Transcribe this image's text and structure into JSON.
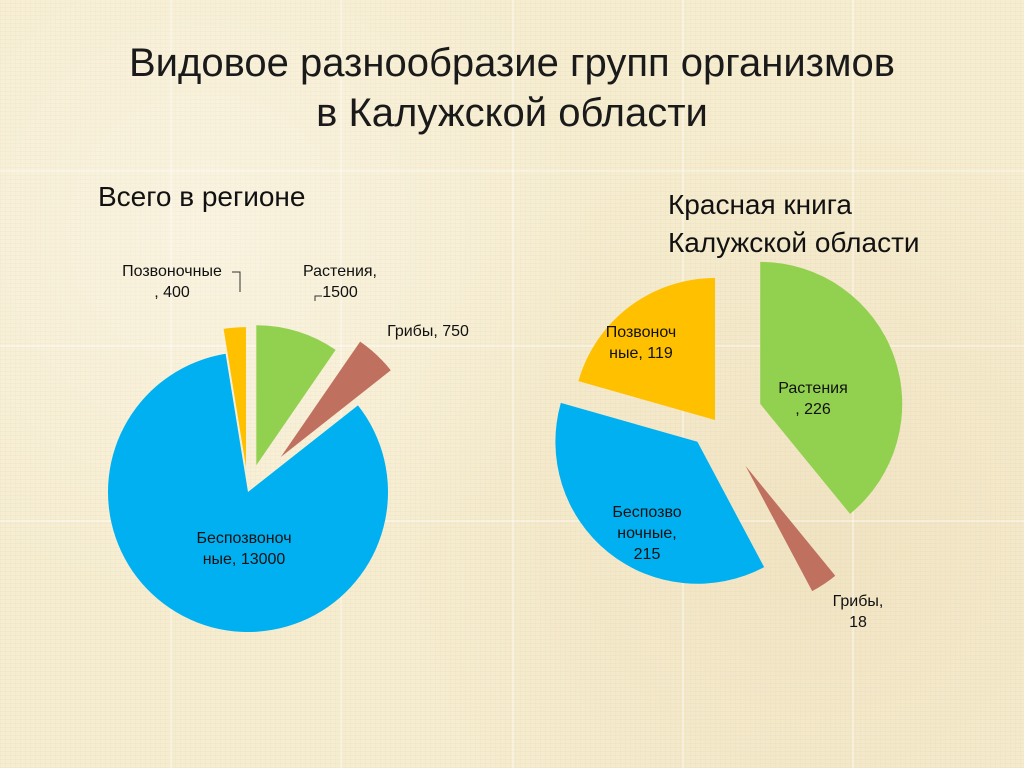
{
  "slide": {
    "title_line1": "Видовое разнообразие групп организмов",
    "title_line2": "в Калужской области"
  },
  "colors": {
    "plants": "#92d050",
    "fungi": "#c0705e",
    "invertebrates": "#00b0f0",
    "vertebrates": "#ffc000"
  },
  "chart_data": [
    {
      "type": "pie",
      "title": "Всего в регионе",
      "slices": [
        {
          "category": "Растения",
          "value": 1500,
          "color": "#92d050",
          "label_lines": [
            "Растения,",
            "1500"
          ]
        },
        {
          "category": "Грибы",
          "value": 750,
          "color": "#c0705e",
          "label_lines": [
            "Грибы, 750"
          ]
        },
        {
          "category": "Беспозвоночные",
          "value": 13000,
          "color": "#00b0f0",
          "label_lines": [
            "Беспозвоноч",
            "ные, 13000"
          ]
        },
        {
          "category": "Позвоночные",
          "value": 400,
          "color": "#ffc000",
          "label_lines": [
            "Позвоночные",
            ", 400"
          ]
        }
      ],
      "legend": "none",
      "exploded": true
    },
    {
      "type": "pie",
      "title_lines": [
        "Красная книга",
        "Калужской области"
      ],
      "slices": [
        {
          "category": "Растения",
          "value": 226,
          "color": "#92d050",
          "label_lines": [
            "Растения",
            ", 226"
          ]
        },
        {
          "category": "Грибы",
          "value": 18,
          "color": "#c0705e",
          "label_lines": [
            "Грибы,",
            "18"
          ]
        },
        {
          "category": "Беспозвоночные",
          "value": 215,
          "color": "#00b0f0",
          "label_lines": [
            "Беспозво",
            "ночные,",
            "215"
          ]
        },
        {
          "category": "Позвоночные",
          "value": 119,
          "color": "#ffc000",
          "label_lines": [
            "Позвоноч",
            "ные, 119"
          ]
        }
      ],
      "legend": "none",
      "exploded": true
    }
  ]
}
